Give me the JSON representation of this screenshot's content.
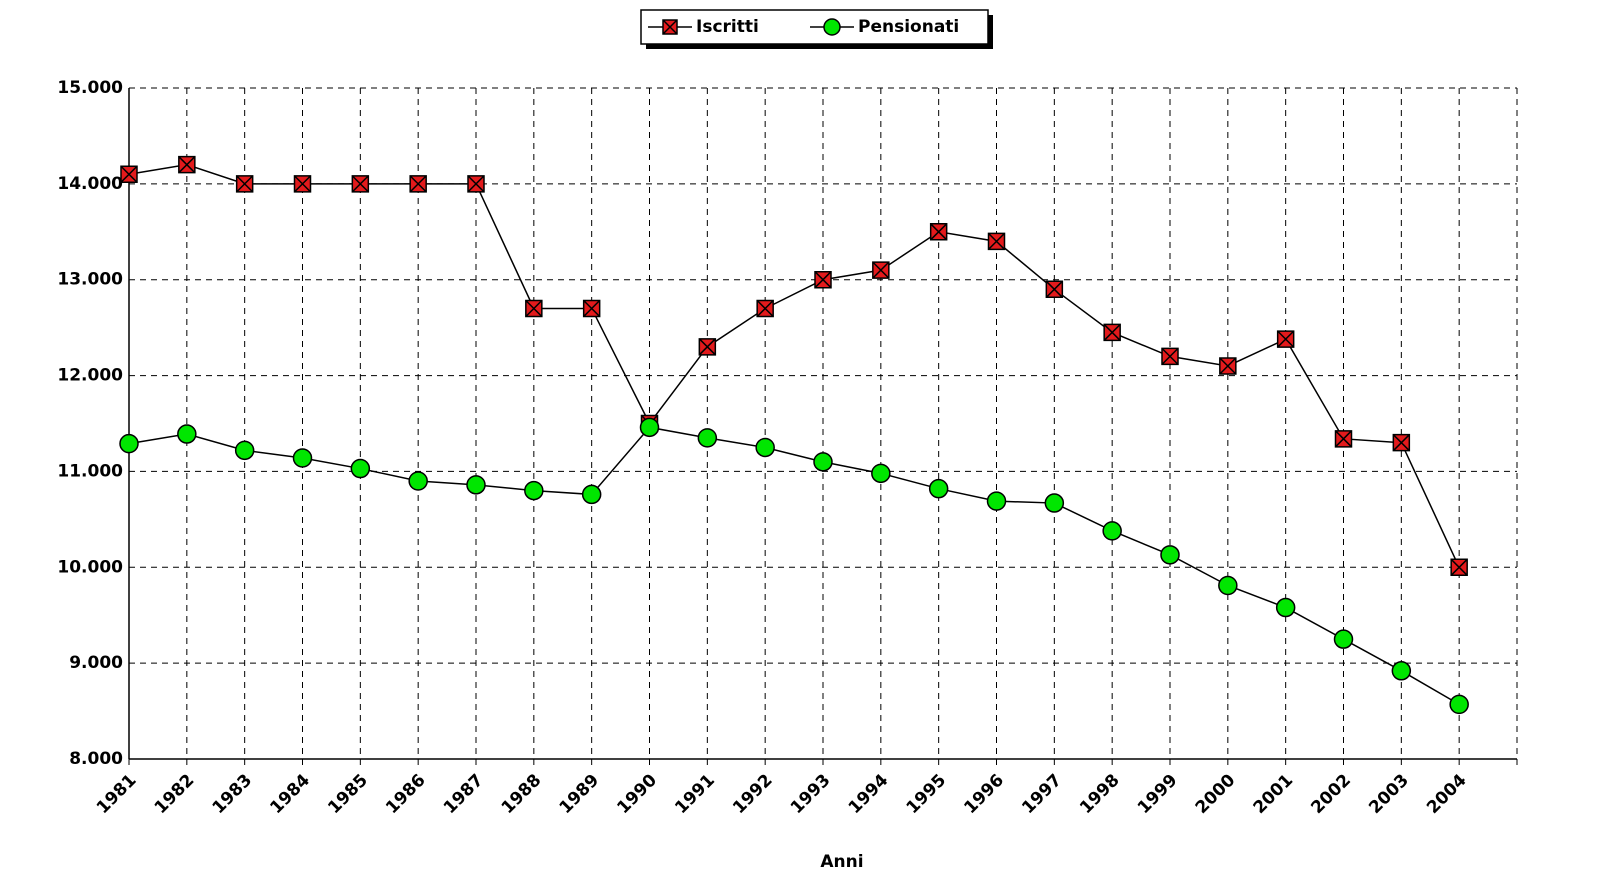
{
  "chart_data": {
    "type": "line",
    "x_label": "Anni",
    "categories": [
      "1981",
      "1982",
      "1983",
      "1984",
      "1985",
      "1986",
      "1987",
      "1988",
      "1989",
      "1990",
      "1991",
      "1992",
      "1993",
      "1994",
      "1995",
      "1996",
      "1997",
      "1998",
      "1999",
      "2000",
      "2001",
      "2002",
      "2003",
      "2004"
    ],
    "series": [
      {
        "name": "Iscritti",
        "color": "#e31a1c",
        "marker": "square-x",
        "values": [
          14100,
          14200,
          14000,
          14000,
          14000,
          14000,
          14000,
          12700,
          12700,
          11500,
          12300,
          12700,
          13000,
          13100,
          13500,
          13400,
          12900,
          12450,
          12200,
          12100,
          12380,
          11340,
          11300,
          10000
        ]
      },
      {
        "name": "Pensionati",
        "color": "#00e600",
        "marker": "circle",
        "values": [
          11290,
          11390,
          11220,
          11140,
          11030,
          10900,
          10860,
          10800,
          10760,
          11460,
          11350,
          11250,
          11100,
          10980,
          10820,
          10690,
          10670,
          10380,
          10130,
          9810,
          9580,
          9250,
          8920,
          8570
        ]
      }
    ],
    "ylim": [
      8000,
      15000
    ],
    "yticks": [
      {
        "value": 8000,
        "label": "8.000"
      },
      {
        "value": 9000,
        "label": "9.000"
      },
      {
        "value": 10000,
        "label": "10.000"
      },
      {
        "value": 11000,
        "label": "11.000"
      },
      {
        "value": 12000,
        "label": "12.000"
      },
      {
        "value": 13000,
        "label": "13.000"
      },
      {
        "value": 14000,
        "label": "14.000"
      },
      {
        "value": 15000,
        "label": "15.000"
      }
    ],
    "grid": true,
    "legend": "top"
  }
}
